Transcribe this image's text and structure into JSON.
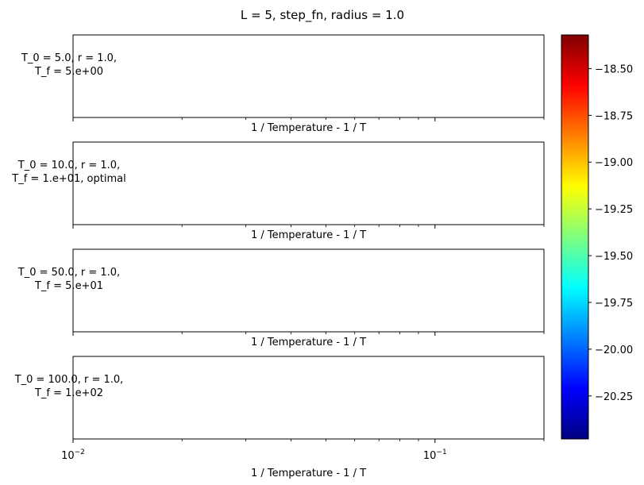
{
  "figure": {
    "title": "L = 5, step_fn, radius = 1.0"
  },
  "chart_data": {
    "type": "heatmap",
    "title": "L = 5, step_fn, radius = 1.0",
    "xscale": "log",
    "xlim": [
      0.01,
      0.2
    ],
    "grid": false,
    "panels": [
      {
        "label_lines": [
          "T_0 = 5.0, r = 1.0,",
          "T_f = 5.e+00"
        ],
        "xlabel": "1 / Temperature - 1 / T"
      },
      {
        "label_lines": [
          "T_0 = 10.0, r = 1.0,",
          "T_f = 1.e+01, optimal"
        ],
        "xlabel": "1 / Temperature - 1 / T"
      },
      {
        "label_lines": [
          "T_0 = 50.0, r = 1.0,",
          "T_f = 5.e+01"
        ],
        "xlabel": "1 / Temperature - 1 / T"
      },
      {
        "label_lines": [
          "T_0 = 100.0, r = 1.0,",
          "T_f = 1.e+02"
        ],
        "xlabel": "1 / Temperature - 1 / T"
      }
    ],
    "xtick_labels": [
      {
        "value": 0.01,
        "base": "10",
        "exp": "−2"
      },
      {
        "value": 0.1,
        "base": "10",
        "exp": "−1"
      }
    ],
    "colorbar": {
      "colormap": "jet",
      "range": [
        -20.48,
        -18.32
      ],
      "ticks": [
        -18.5,
        -18.75,
        -19.0,
        -19.25,
        -19.5,
        -19.75,
        -20.0,
        -20.25
      ],
      "tick_labels": [
        "−18.50",
        "−18.75",
        "−19.00",
        "−19.25",
        "−19.50",
        "−19.75",
        "−20.00",
        "−20.25"
      ],
      "colors": [
        "#00007f",
        "#0000ff",
        "#007fff",
        "#00ffff",
        "#7fff7f",
        "#ffff00",
        "#ff7f00",
        "#ff0000",
        "#7f0000"
      ]
    }
  }
}
